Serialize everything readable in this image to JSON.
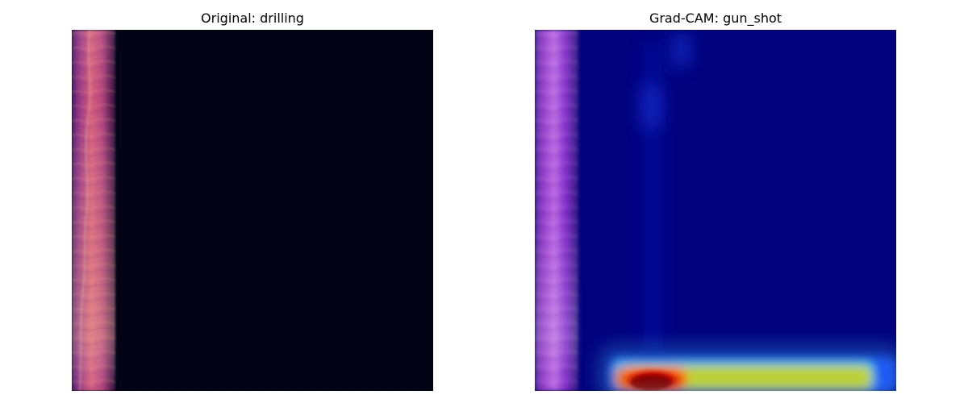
{
  "figure": {
    "panels": [
      {
        "title": "Original: drilling",
        "content": "spectrogram"
      },
      {
        "title": "Grad-CAM: gun_shot",
        "content": "spectrogram-with-gradcam-overlay"
      }
    ]
  },
  "colors": {
    "background": "#ffffff",
    "spectrogram_dark": "#020416",
    "spectrogram_magenta": "#b0407c",
    "spectrogram_orange": "#f08a5a",
    "heatmap_blue": "#02027f",
    "heatmap_red": "#a80000",
    "heatmap_yellow": "#c8d02a",
    "heatmap_cyan": "#37d2f0"
  }
}
